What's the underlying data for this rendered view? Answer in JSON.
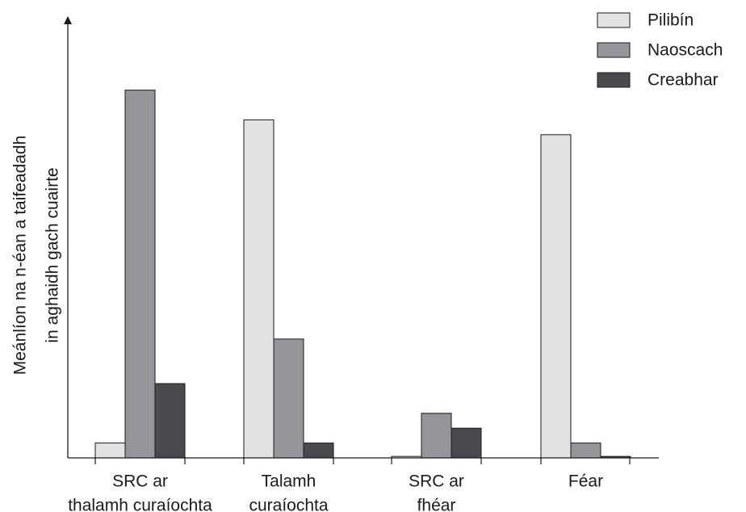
{
  "chart_data": {
    "type": "bar",
    "title": "",
    "ylabel_lines": [
      "Meánlíon na n-éan a taifeadadh",
      "in aghaidh gach cuairte"
    ],
    "xlabel": "",
    "categories": [
      [
        "SRC ar",
        "thalamh curaíochta"
      ],
      [
        "Talamh",
        "curaíochta"
      ],
      [
        "SRC ar",
        "fhéar"
      ],
      [
        "Féar"
      ]
    ],
    "ylim": [
      0,
      1
    ],
    "grid": false,
    "y_ticks_shown": false,
    "legend_position": "top-right",
    "series": [
      {
        "name": "Pilibín",
        "color": "#e2e2e2",
        "values": [
          0.04,
          0.91,
          0.004,
          0.87
        ]
      },
      {
        "name": "Naoscach",
        "color": "#96969a",
        "values": [
          0.99,
          0.32,
          0.12,
          0.04
        ]
      },
      {
        "name": "Creabhar",
        "color": "#4a4a4e",
        "values": [
          0.2,
          0.04,
          0.08,
          0.004
        ]
      }
    ]
  }
}
